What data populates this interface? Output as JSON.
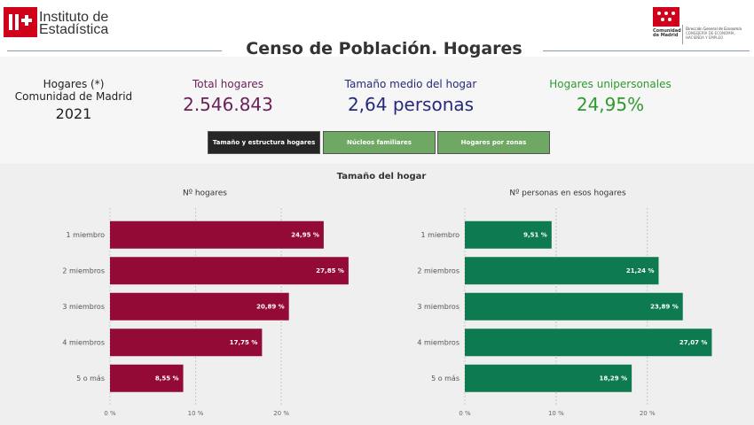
{
  "header": {
    "logo_left": [
      "Instituto de",
      "Estadística"
    ],
    "title": "Censo de Población. Hogares",
    "logo_right": {
      "name": [
        "Comunidad",
        "de Madrid"
      ],
      "lines": [
        "Dirección General de Economía",
        "CONSEJERÍA DE ECONOMÍA,",
        "HACIENDA Y EMPLEO"
      ]
    }
  },
  "kpis": [
    {
      "lines": [
        "Hogares (*)",
        "Comunidad de Madrid"
      ],
      "value": "2021"
    },
    {
      "label": "Total hogares",
      "value": "2.546.843"
    },
    {
      "label": "Tamaño medio del hogar",
      "value": "2,64 personas"
    },
    {
      "label": "Hogares unipersonales",
      "value": "24,95%"
    }
  ],
  "tabs": [
    "Tamaño y estructura hogares",
    "Núcleos familiares",
    "Hogares por zonas"
  ],
  "section_title": "Tamaño del hogar",
  "chart_data": [
    {
      "type": "bar",
      "orientation": "horizontal",
      "title": "Nº hogares",
      "categories": [
        "1 miembro",
        "2 miembros",
        "3 miembros",
        "4 miembros",
        "5 o más"
      ],
      "values": [
        24.95,
        27.85,
        20.89,
        17.75,
        8.55
      ],
      "value_labels": [
        "24,95 %",
        "27,85 %",
        "20,89 %",
        "17,75 %",
        "8,55 %"
      ],
      "color": "#940a37",
      "xlim": [
        0,
        29
      ],
      "xticks": [
        {
          "value": 0,
          "label": "0 %"
        },
        {
          "value": 10,
          "label": "10 %"
        },
        {
          "value": 20,
          "label": "20 %"
        }
      ],
      "grid": true
    },
    {
      "type": "bar",
      "orientation": "horizontal",
      "title": "Nº personas en esos hogares",
      "categories": [
        "1 miembro",
        "2 miembros",
        "3 miembros",
        "4 miembros",
        "5 o más"
      ],
      "values": [
        9.51,
        21.24,
        23.89,
        27.07,
        18.29
      ],
      "value_labels": [
        "9,51 %",
        "21,24 %",
        "23,89 %",
        "27,07 %",
        "18,29 %"
      ],
      "color": "#0e7a4f",
      "xlim": [
        0,
        28
      ],
      "xticks": [
        {
          "value": 0,
          "label": "0 %"
        },
        {
          "value": 10,
          "label": "10 %"
        },
        {
          "value": 20,
          "label": "20 %"
        }
      ],
      "grid": true
    }
  ]
}
